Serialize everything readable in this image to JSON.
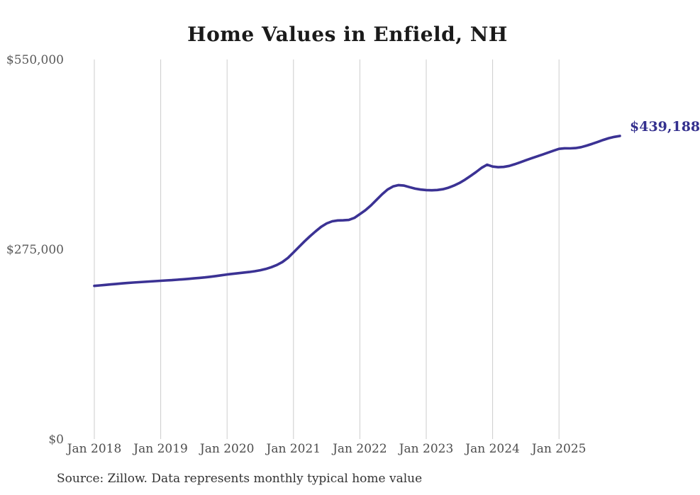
{
  "title": "Home Values in Enfield, NH",
  "source_note": "Source: Zillow. Data represents monthly typical home value",
  "colors": {
    "background": "#ffffff",
    "line": "#3b3294",
    "grid": "#cccccc",
    "title": "#1a1a1a",
    "y_tick_label": "#595959",
    "x_tick_label": "#4d4d4d",
    "end_label": "#34308e",
    "source": "#333333"
  },
  "chart_data": {
    "type": "line",
    "title": "Home Values in Enfield, NH",
    "xlabel": "",
    "ylabel": "",
    "ylim": [
      0,
      550000
    ],
    "y_ticks": [
      550000,
      275000,
      0
    ],
    "y_tick_labels": [
      "$550,000",
      "$275,000",
      "$0"
    ],
    "x_tick_labels": [
      "Jan 2018",
      "Jan 2019",
      "Jan 2020",
      "Jan 2021",
      "Jan 2022",
      "Jan 2023",
      "Jan 2024",
      "Jan 2025"
    ],
    "x_start": "Jan 2018",
    "x_end": "Dec 2025",
    "cadence": "monthly",
    "grid": "vertical-only",
    "legend": "none",
    "latest_value": 439188,
    "latest_value_label": "$439,188",
    "series": [
      {
        "name": "Typical home value",
        "values": [
          222000,
          222700,
          223400,
          224100,
          224800,
          225500,
          226200,
          226800,
          227300,
          227800,
          228300,
          228800,
          229300,
          229800,
          230300,
          230900,
          231500,
          232100,
          232800,
          233500,
          234300,
          235200,
          236200,
          237300,
          238500,
          239400,
          240300,
          241200,
          242100,
          243200,
          244600,
          246500,
          249000,
          252200,
          256500,
          262500,
          270400,
          278500,
          286500,
          294000,
          301000,
          307500,
          312500,
          315500,
          316800,
          317000,
          317500,
          320500,
          325900,
          331500,
          338500,
          346500,
          354500,
          361500,
          366000,
          368000,
          367200,
          365000,
          362800,
          361500,
          360800,
          360500,
          360900,
          362000,
          364200,
          367200,
          371000,
          375800,
          381200,
          386800,
          393000,
          397500,
          394800,
          393900,
          394300,
          395800,
          398200,
          401000,
          404000,
          406800,
          409500,
          412200,
          415000,
          417800,
          420500,
          421300,
          421200,
          421600,
          423000,
          425200,
          427800,
          430600,
          433400,
          436000,
          437800,
          439188
        ]
      }
    ]
  }
}
